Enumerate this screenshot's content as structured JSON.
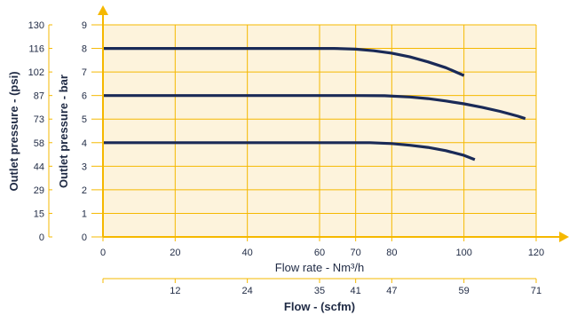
{
  "chart_data": {
    "type": "line",
    "xlabel": "Flow rate - Nm³/h",
    "ylabel": "Outlet pressure - bar",
    "ylabel_secondary": "Outlet pressure - (psi)",
    "xlabel_secondary": "Flow - (scfm)",
    "xlim": [
      0,
      120
    ],
    "ylim": [
      0,
      9
    ],
    "x_ticks": [
      0,
      20,
      40,
      60,
      70,
      80,
      100,
      120
    ],
    "y_ticks": [
      0,
      1,
      2,
      3,
      4,
      5,
      6,
      7,
      8,
      9
    ],
    "psi_ticks": [
      "0",
      "15",
      "29",
      "44",
      "58",
      "73",
      "87",
      "102",
      "116",
      "130"
    ],
    "scfm_ticks": [
      {
        "x": 20,
        "label": "12"
      },
      {
        "x": 40,
        "label": "24"
      },
      {
        "x": 60,
        "label": "35"
      },
      {
        "x": 70,
        "label": "41"
      },
      {
        "x": 80,
        "label": "47"
      },
      {
        "x": 100,
        "label": "59"
      },
      {
        "x": 120,
        "label": "71"
      }
    ],
    "grid": true,
    "series": [
      {
        "x": [
          0,
          20,
          40,
          60,
          64,
          70,
          75,
          80,
          85,
          90,
          95,
          100
        ],
        "y": [
          8,
          8,
          8,
          8,
          8,
          7.97,
          7.9,
          7.8,
          7.64,
          7.43,
          7.18,
          6.85
        ]
      },
      {
        "x": [
          0,
          20,
          40,
          60,
          70,
          78,
          85,
          90,
          95,
          100,
          105,
          110,
          115,
          117
        ],
        "y": [
          6,
          6,
          6,
          6,
          6,
          5.99,
          5.94,
          5.87,
          5.77,
          5.65,
          5.5,
          5.33,
          5.12,
          5.02
        ]
      },
      {
        "x": [
          0,
          20,
          40,
          60,
          70,
          74,
          80,
          85,
          90,
          95,
          100,
          103
        ],
        "y": [
          4,
          4,
          4,
          4,
          4,
          4,
          3.96,
          3.89,
          3.8,
          3.66,
          3.46,
          3.28
        ]
      }
    ],
    "colors": {
      "plot_background": "#fdf3dc",
      "grid": "#f5b800",
      "axis_arrow": "#f5b800",
      "curve": "#1a2a57",
      "text": "#1f2a44"
    }
  }
}
